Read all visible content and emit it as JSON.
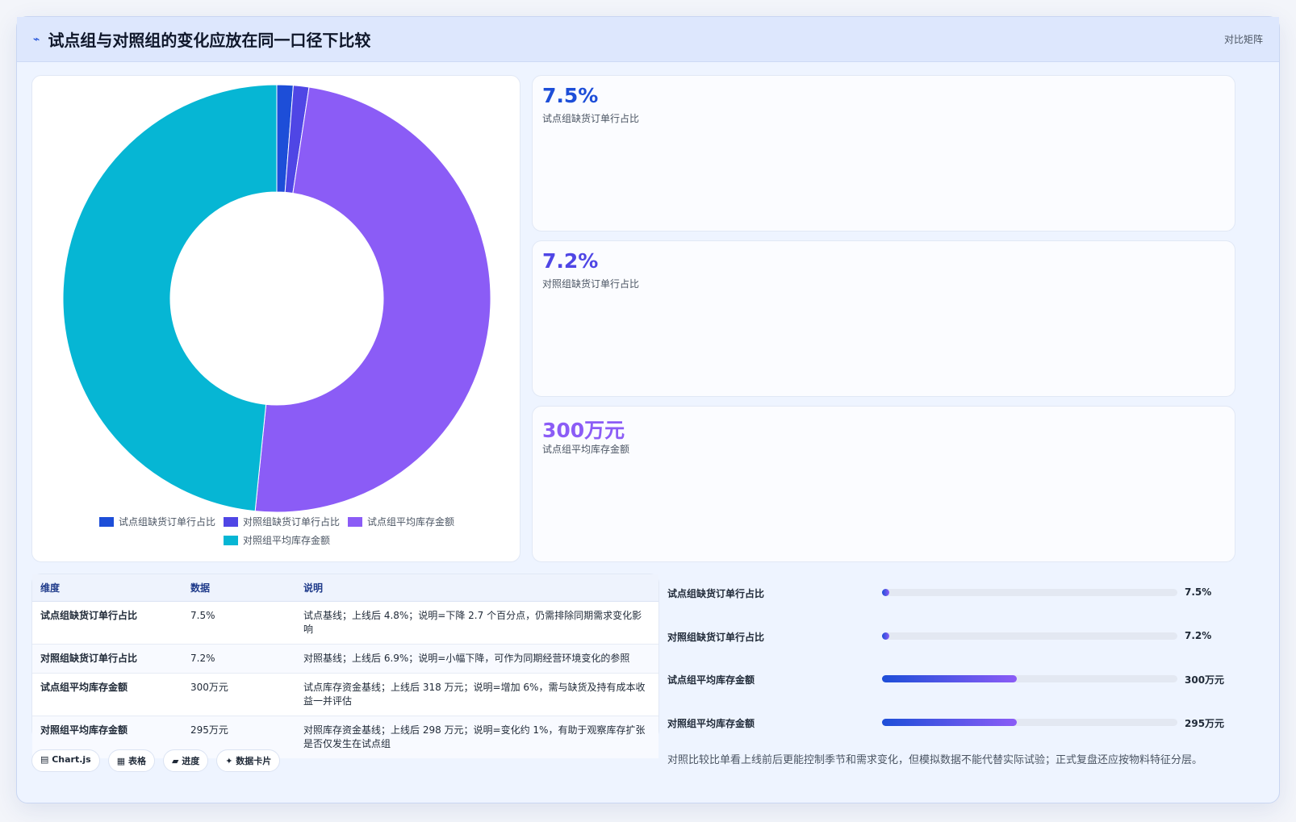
{
  "header": {
    "title": "试点组与对照组的变化应放在同一口径下比较",
    "tag": "对比矩阵",
    "icon": "pulse-icon"
  },
  "chart_data": {
    "type": "pie",
    "donut": true,
    "categories": [
      "试点组缺货订单行占比",
      "对照组缺货订单行占比",
      "试点组平均库存金额",
      "对照组平均库存金额"
    ],
    "values": [
      7.5,
      7.2,
      300,
      295
    ],
    "colors": [
      "#1d4ed8",
      "#4f46e5",
      "#8b5cf6",
      "#06b6d4"
    ],
    "legend": "bottom"
  },
  "kpis": [
    {
      "value": "7.5%",
      "label": "试点组缺货订单行占比",
      "color": "#1d4ed8"
    },
    {
      "value": "7.2%",
      "label": "对照组缺货订单行占比",
      "color": "#4f46e5"
    },
    {
      "value": "300万元",
      "label": "试点组平均库存金额",
      "color": "#8b5cf6"
    }
  ],
  "table": {
    "headers": [
      "维度",
      "数据",
      "说明"
    ],
    "rows": [
      [
        "试点组缺货订单行占比",
        "7.5%",
        "试点基线；上线后 4.8%；说明=下降 2.7 个百分点，仍需排除同期需求变化影响"
      ],
      [
        "对照组缺货订单行占比",
        "7.2%",
        "对照基线；上线后 6.9%；说明=小幅下降，可作为同期经营环境变化的参照"
      ],
      [
        "试点组平均库存金额",
        "300万元",
        "试点库存资金基线；上线后 318 万元；说明=增加 6%，需与缺货及持有成本收益一并评估"
      ],
      [
        "对照组平均库存金额",
        "295万元",
        "对照库存资金基线；上线后 298 万元；说明=变化约 1%，有助于观察库存扩张是否仅发生在试点组"
      ]
    ]
  },
  "progress": [
    {
      "label": "试点组缺货订单行占比",
      "value": "7.5%",
      "fraction": 0.025
    },
    {
      "label": "对照组缺货订单行占比",
      "value": "7.2%",
      "fraction": 0.024
    },
    {
      "label": "试点组平均库存金额",
      "value": "300万元",
      "fraction": 0.455
    },
    {
      "label": "对照组平均库存金额",
      "value": "295万元",
      "fraction": 0.455
    }
  ],
  "note": "对照比较比单看上线前后更能控制季节和需求变化，但模拟数据不能代替实际试验；正式复盘还应按物料特征分层。",
  "chips": [
    "▤ Chart.js",
    "▦ 表格",
    "▰ 进度",
    "✦ 数据卡片"
  ]
}
